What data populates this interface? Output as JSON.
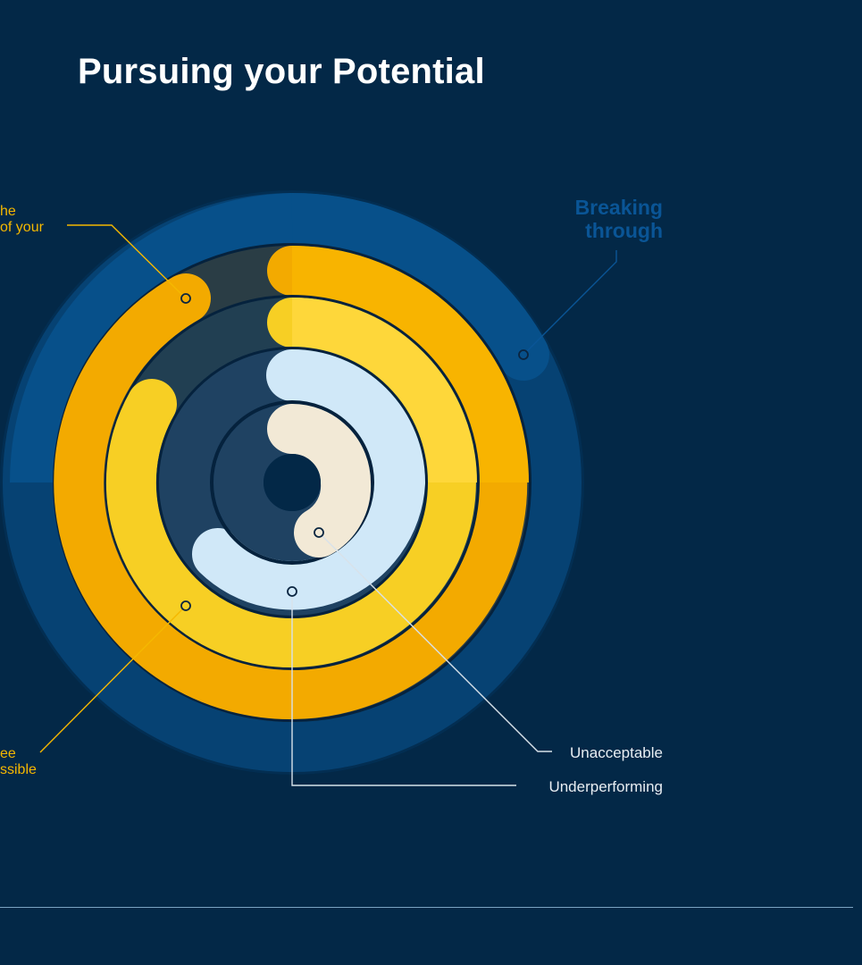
{
  "title": "Pursuing your Potential",
  "labels": {
    "top_left_line1": "he",
    "top_left_line2": "of your",
    "bottom_left_line1": "ee",
    "bottom_left_line2": "ssible",
    "breaking_line1": "Breaking",
    "breaking_line2": "through",
    "unacceptable": "Unacceptable",
    "underperforming": "Underperforming"
  },
  "colors": {
    "background": "#032847",
    "outer_blue": "#07508a",
    "orange": "#f7b400",
    "yellow": "#fdd835",
    "light_blue": "#cfe7f7",
    "cream": "#f2e9d6",
    "label_yellow": "#f5b800",
    "label_blue": "#0a5596"
  }
}
